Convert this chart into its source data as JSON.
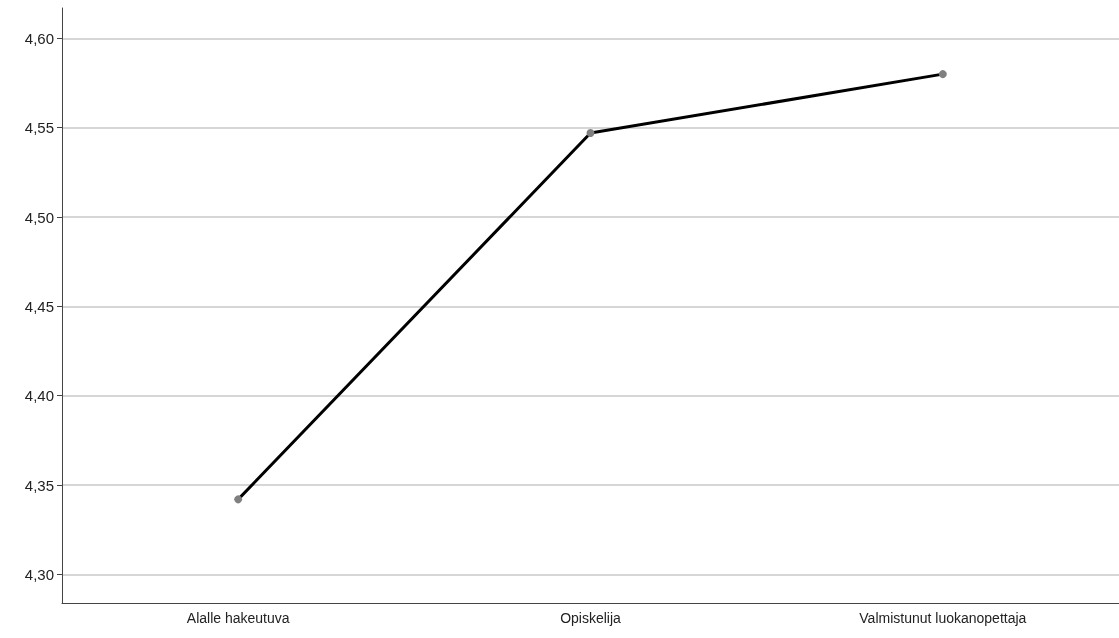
{
  "chart_data": {
    "type": "line",
    "categories": [
      "Alalle hakeutuva",
      "Opiskelija",
      "Valmistunut luokanopettaja"
    ],
    "series": [
      {
        "color": "#000000",
        "values": [
          4.342,
          4.547,
          4.58
        ]
      }
    ],
    "ylim": [
      4.284,
      4.617
    ],
    "yticks": [
      {
        "value": 4.3,
        "label": "4,30"
      },
      {
        "value": 4.35,
        "label": "4,35"
      },
      {
        "value": 4.4,
        "label": "4,40"
      },
      {
        "value": 4.45,
        "label": "4,45"
      },
      {
        "value": 4.5,
        "label": "4,50"
      },
      {
        "value": 4.55,
        "label": "4,55"
      },
      {
        "value": 4.6,
        "label": "4,60"
      }
    ],
    "grid": "y",
    "marker": "circle",
    "line_style": "solid"
  }
}
